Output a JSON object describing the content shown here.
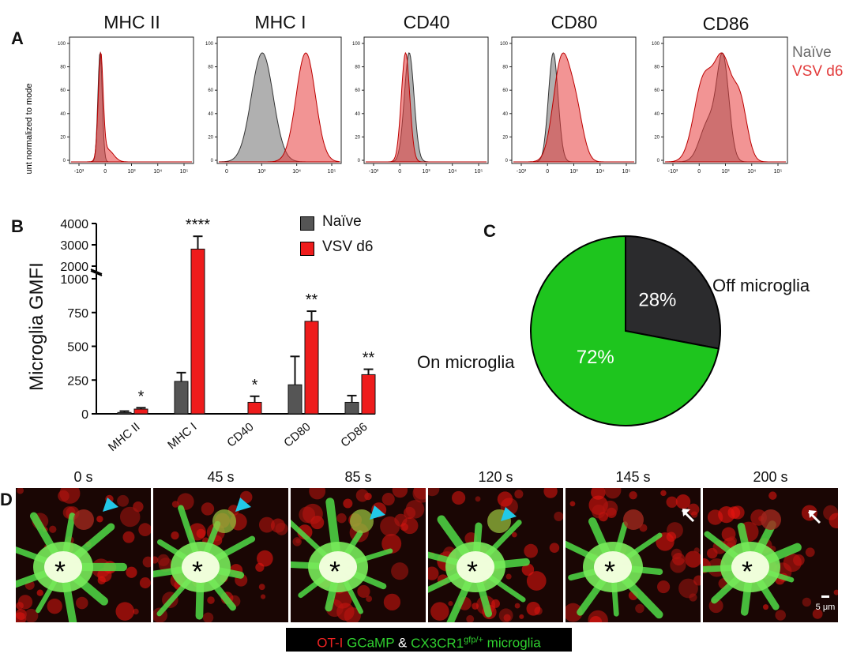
{
  "panel_a": {
    "letter": "A",
    "y_axis_label": "Count normalized to mode",
    "markers": [
      "MHC II",
      "MHC I",
      "CD40",
      "CD80",
      "CD86"
    ],
    "y_ticks": [
      "0",
      "20",
      "40",
      "60",
      "80",
      "100"
    ],
    "x_ticks_full": [
      "-10³",
      "0",
      "10³",
      "10⁴",
      "10⁵"
    ],
    "x_ticks_mhci": [
      "0",
      "10³",
      "10⁴",
      "10⁵"
    ],
    "legend": [
      {
        "label": "Naïve",
        "color": "#6b6b6b"
      },
      {
        "label": "VSV d6",
        "color": "#e23b3b"
      }
    ]
  },
  "panel_b": {
    "letter": "B",
    "legend": [
      {
        "label": "Naïve",
        "color": "#555555"
      },
      {
        "label": "VSV d6",
        "color": "#ee1c1c"
      }
    ]
  },
  "panel_c": {
    "letter": "C"
  },
  "panel_d": {
    "letter": "D",
    "timepoints": [
      "0 s",
      "45 s",
      "85 s",
      "120 s",
      "145 s",
      "200 s"
    ],
    "center_mark": "*",
    "scale_bar": "5 μm",
    "caption": {
      "part1": "OT-I",
      "part2": "GCaMP",
      "part3": "&",
      "part4": "CX3CR1",
      "part5": "gfp/+",
      "part6": "microglia"
    }
  },
  "chart_data": [
    {
      "type": "bar",
      "title": "",
      "ylabel": "Microglia GMFI",
      "xlabel": "",
      "categories": [
        "MHC II",
        "MHC I",
        "CD40",
        "CD80",
        "CD86"
      ],
      "series": [
        {
          "name": "Naïve",
          "color": "#555555",
          "values": [
            10,
            240,
            0,
            215,
            85
          ],
          "errors": [
            10,
            65,
            0,
            210,
            50
          ]
        },
        {
          "name": "VSV d6",
          "color": "#ee1c1c",
          "values": [
            35,
            2800,
            85,
            685,
            290
          ],
          "errors": [
            10,
            600,
            45,
            75,
            40
          ]
        }
      ],
      "significance": [
        "*",
        "****",
        "*",
        "**",
        "**"
      ],
      "y_ticks_lower": [
        "0",
        "250",
        "500",
        "750",
        "1000"
      ],
      "y_ticks_upper": [
        "2000",
        "3000",
        "4000"
      ],
      "ylim_lower": [
        0,
        1000
      ],
      "ylim_upper": [
        2000,
        4000
      ],
      "axis_break": true
    },
    {
      "type": "pie",
      "slices": [
        {
          "label": "Off microglia",
          "value": 28,
          "text": "28%",
          "color": "#2b2b2d"
        },
        {
          "label": "On microglia",
          "value": 72,
          "text": "72%",
          "color": "#1ec51e"
        }
      ]
    }
  ]
}
